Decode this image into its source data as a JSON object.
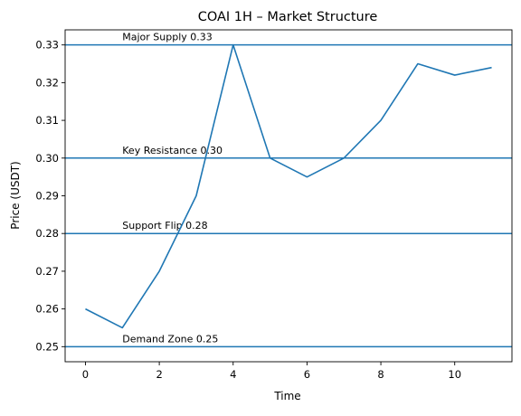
{
  "chart_data": {
    "type": "line",
    "title": "COAI 1H – Market Structure",
    "xlabel": "Time",
    "ylabel": "Price (USDT)",
    "x": [
      0,
      1,
      2,
      3,
      4,
      5,
      6,
      7,
      8,
      9,
      10,
      11
    ],
    "series": [
      {
        "values": [
          0.26,
          0.255,
          0.27,
          0.29,
          0.33,
          0.3,
          0.295,
          0.3,
          0.31,
          0.325,
          0.322,
          0.324
        ],
        "color": "#1f77b4"
      }
    ],
    "xlim": [
      -0.55,
      11.55
    ],
    "ylim": [
      0.246,
      0.334
    ],
    "xticks": [
      0,
      2,
      4,
      6,
      8,
      10
    ],
    "yticks": [
      0.25,
      0.26,
      0.27,
      0.28,
      0.29,
      0.3,
      0.31,
      0.32,
      0.33
    ],
    "xtick_labels": [
      "0",
      "2",
      "4",
      "6",
      "8",
      "10"
    ],
    "ytick_labels": [
      "0.25",
      "0.26",
      "0.27",
      "0.28",
      "0.29",
      "0.30",
      "0.31",
      "0.32",
      "0.33"
    ],
    "hlines": [
      {
        "y": 0.33,
        "label": "Major Supply 0.33",
        "label_x": 1
      },
      {
        "y": 0.3,
        "label": "Key Resistance 0.30",
        "label_x": 1
      },
      {
        "y": 0.28,
        "label": "Support Flip 0.28",
        "label_x": 1
      },
      {
        "y": 0.25,
        "label": "Demand Zone 0.25",
        "label_x": 1
      }
    ],
    "line_color": "#1f77b4",
    "grid": false
  }
}
